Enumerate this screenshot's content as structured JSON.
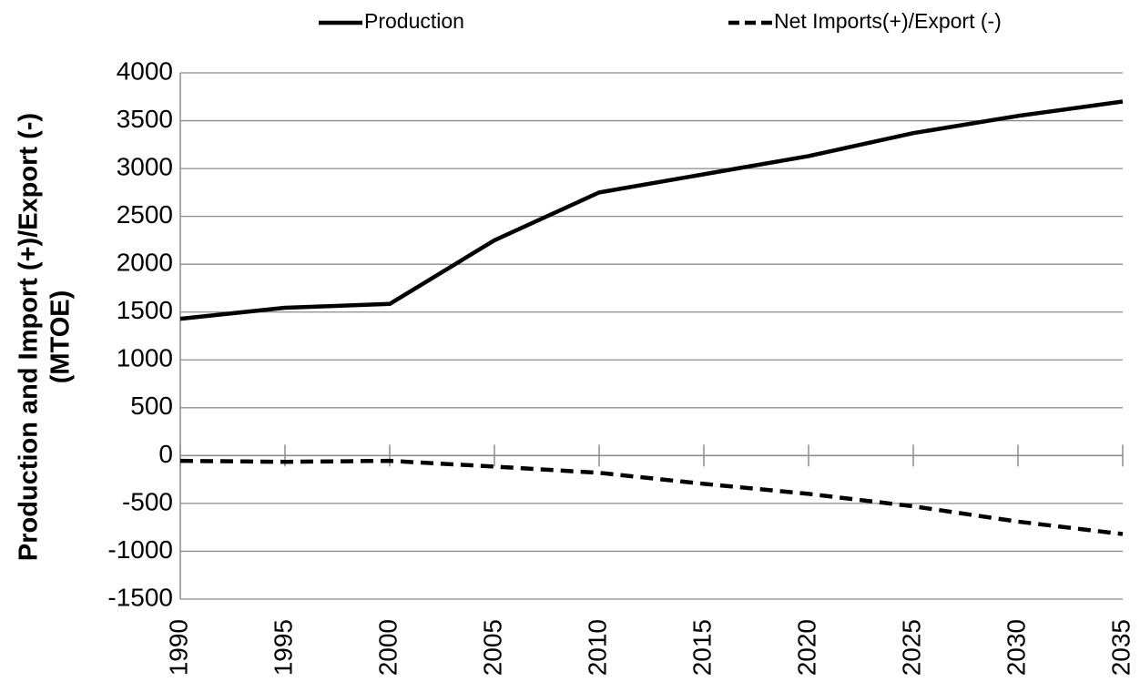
{
  "chart_data": {
    "type": "line",
    "y_label": [
      "Production and Import (+)/Export (-)",
      "(MTOE)"
    ],
    "x": [
      1990,
      1995,
      2000,
      2005,
      2010,
      2015,
      2020,
      2025,
      2030,
      2035
    ],
    "xlim": [
      1990,
      2035
    ],
    "xticks": [
      1990,
      1995,
      2000,
      2005,
      2010,
      2015,
      2020,
      2025,
      2030,
      2035
    ],
    "ylim": [
      -1500,
      4000
    ],
    "yticks": [
      -1500,
      -1000,
      -500,
      0,
      500,
      1000,
      1500,
      2000,
      2500,
      3000,
      3500,
      4000
    ],
    "grid": true,
    "legend": "top",
    "series": [
      {
        "name": "Production",
        "color": "#000000",
        "style": "solid",
        "values": [
          1430,
          1545,
          1585,
          2250,
          2750,
          2940,
          3130,
          3370,
          3550,
          3700
        ]
      },
      {
        "name": "Net Imports(+)/Export (-)",
        "color": "#000000",
        "style": "dashed",
        "values": [
          -55,
          -65,
          -55,
          -115,
          -180,
          -295,
          -400,
          -530,
          -690,
          -820
        ]
      }
    ]
  }
}
